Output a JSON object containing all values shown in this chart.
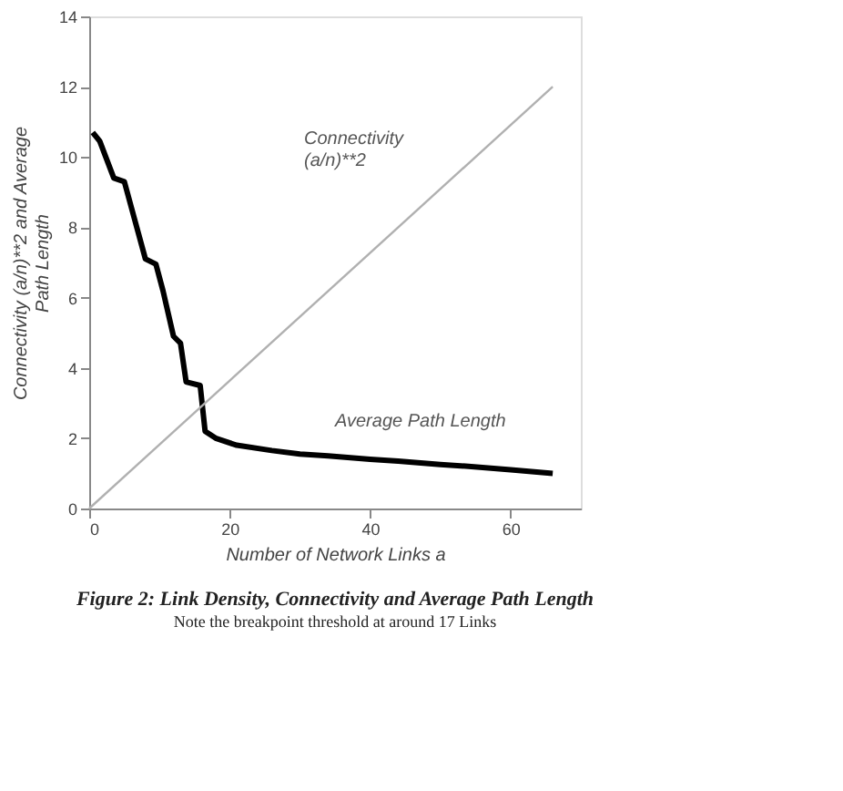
{
  "chart_data": {
    "type": "line",
    "title": "Figure 2: Link Density, Connectivity and Average Path Length",
    "subtitle": "Note the breakpoint threshold at around 17 Links",
    "xlabel": "Number of Network Links a",
    "ylabel": "Connectivity (a/n)**2 and Average Path Length",
    "xlim": [
      0,
      70
    ],
    "xticks": [
      0,
      20,
      40,
      60
    ],
    "ylim": [
      0,
      14
    ],
    "yticks": [
      0,
      2,
      4,
      6,
      8,
      10,
      12,
      14
    ],
    "grid": false,
    "marker": "none",
    "line_style": "solid",
    "series": [
      {
        "color": "#000000",
        "x": [
          0.5,
          1.5,
          3.5,
          5,
          6.5,
          8,
          9.5,
          10.5,
          12,
          13,
          13.8,
          15.8,
          16.5,
          18,
          21,
          26,
          30,
          34,
          40,
          44,
          50,
          54,
          60,
          66
        ],
        "values": [
          10.7,
          10.45,
          9.4,
          9.3,
          8.2,
          7.1,
          6.95,
          6.2,
          4.9,
          4.7,
          3.6,
          3.5,
          2.2,
          2.0,
          1.8,
          1.65,
          1.55,
          1.5,
          1.4,
          1.35,
          1.25,
          1.2,
          1.1,
          1.0
        ]
      },
      {
        "color": "#b0b0b0",
        "x": [
          0,
          66
        ],
        "values": [
          0,
          12
        ]
      }
    ],
    "annotations": [
      "Connectivity\n(a/n)**2",
      "Average Path Length"
    ]
  }
}
